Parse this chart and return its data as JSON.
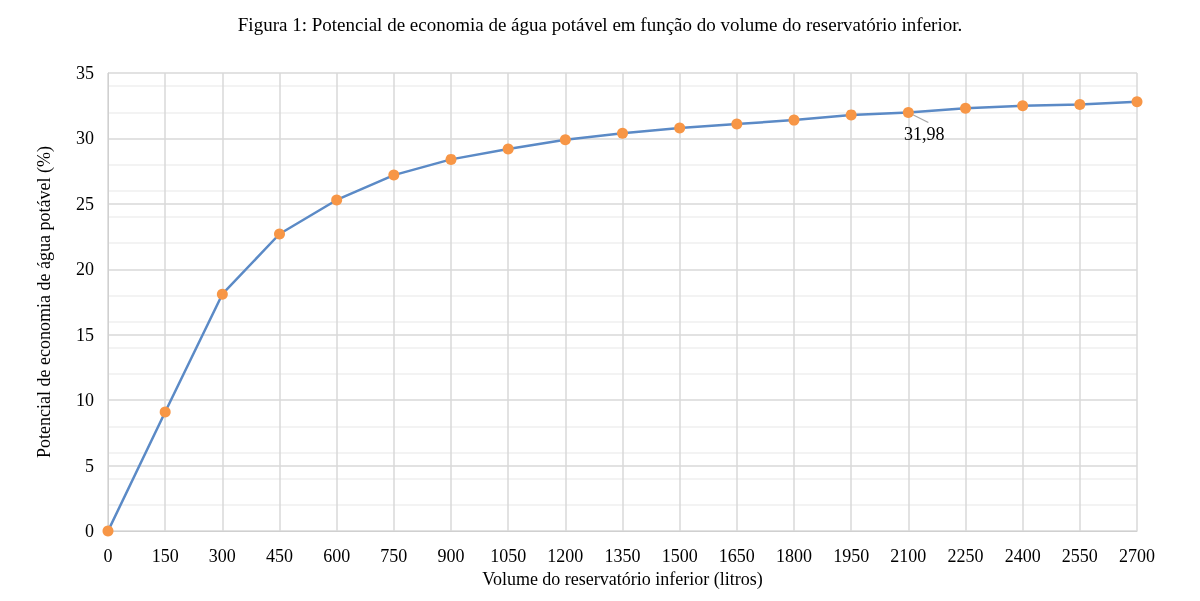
{
  "chart_data": {
    "type": "line",
    "title": "Figura 1: Potencial de economia de água potável em função do volume do reservatório inferior.",
    "xlabel": "Volume do reservatório inferior (litros)",
    "ylabel": "Potencial de economia de água potável (%)",
    "x": [
      0,
      150,
      300,
      450,
      600,
      750,
      900,
      1050,
      1200,
      1350,
      1500,
      1650,
      1800,
      1950,
      2100,
      2250,
      2400,
      2550,
      2700
    ],
    "series": [
      {
        "color": "#5b8ac6",
        "values": [
          0,
          9.1,
          18.1,
          22.7,
          25.3,
          27.2,
          28.4,
          29.2,
          29.9,
          30.4,
          30.8,
          31.1,
          31.4,
          31.8,
          31.98,
          32.3,
          32.5,
          32.6,
          32.8
        ]
      }
    ],
    "xlim": [
      0,
      2700
    ],
    "xticks": [
      0,
      150,
      300,
      450,
      600,
      750,
      900,
      1050,
      1200,
      1350,
      1500,
      1650,
      1800,
      1950,
      2100,
      2250,
      2400,
      2550,
      2700
    ],
    "ylim": [
      0,
      35
    ],
    "yticks": [
      0,
      5,
      10,
      15,
      20,
      25,
      30,
      35
    ],
    "grid": true,
    "marker": "circle",
    "line_style": "solid",
    "annotations": [
      {
        "text": "31,98",
        "x": 2100,
        "y": 31.98
      }
    ]
  }
}
